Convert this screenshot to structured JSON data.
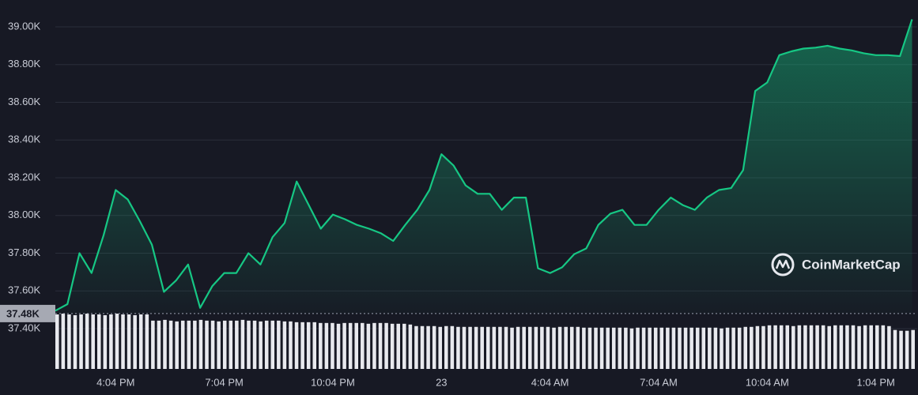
{
  "chart_data": {
    "type": "line",
    "color": "#16c784",
    "grid": true,
    "watermark": "CoinMarketCap",
    "ylim": [
      37400,
      39000
    ],
    "yticks": [
      {
        "value": 37400,
        "label": "37.40K"
      },
      {
        "value": 37600,
        "label": "37.60K"
      },
      {
        "value": 37800,
        "label": "37.80K"
      },
      {
        "value": 38000,
        "label": "38.00K"
      },
      {
        "value": 38200,
        "label": "38.20K"
      },
      {
        "value": 38400,
        "label": "38.40K"
      },
      {
        "value": 38600,
        "label": "38.60K"
      },
      {
        "value": 38800,
        "label": "38.80K"
      },
      {
        "value": 39000,
        "label": "39.00K"
      }
    ],
    "current_price": {
      "value": 37480,
      "label": "37.48K"
    },
    "categories": [
      null,
      null,
      null,
      null,
      null,
      "4:04 PM",
      null,
      null,
      null,
      null,
      null,
      null,
      null,
      null,
      "7:04 PM",
      null,
      null,
      null,
      null,
      null,
      null,
      null,
      null,
      "10:04 PM",
      null,
      null,
      null,
      null,
      null,
      null,
      null,
      null,
      "23",
      null,
      null,
      null,
      null,
      null,
      null,
      null,
      null,
      "4:04 AM",
      null,
      null,
      null,
      null,
      null,
      null,
      null,
      null,
      "7:04 AM",
      null,
      null,
      null,
      null,
      null,
      null,
      null,
      null,
      "10:04 AM",
      null,
      null,
      null,
      null,
      null,
      null,
      null,
      null,
      "1:04 PM",
      null,
      null,
      null
    ],
    "values": [
      37495,
      37530,
      37800,
      37695,
      37895,
      38135,
      38085,
      37970,
      37845,
      37595,
      37655,
      37740,
      37510,
      37625,
      37695,
      37695,
      37800,
      37740,
      37885,
      37960,
      38180,
      38055,
      37930,
      38005,
      37980,
      37950,
      37930,
      37905,
      37865,
      37950,
      38030,
      38135,
      38325,
      38265,
      38160,
      38115,
      38115,
      38030,
      38095,
      38095,
      37720,
      37695,
      37725,
      37795,
      37825,
      37950,
      38010,
      38030,
      37950,
      37950,
      38030,
      38095,
      38055,
      38030,
      38095,
      38135,
      38145,
      38240,
      38660,
      38705,
      38850,
      38870,
      38885,
      38890,
      38900,
      38885,
      38875,
      38860,
      38850,
      38850,
      38845,
      39040
    ],
    "volume": [
      70,
      71,
      70,
      69,
      70,
      71,
      70,
      70,
      69,
      70,
      71,
      70,
      70,
      69,
      70,
      70,
      62,
      62,
      63,
      62,
      61,
      62,
      62,
      62,
      63,
      62,
      62,
      61,
      62,
      62,
      62,
      63,
      62,
      62,
      61,
      62,
      62,
      62,
      61,
      61,
      60,
      60,
      60,
      60,
      59,
      59,
      59,
      58,
      59,
      59,
      59,
      59,
      58,
      59,
      59,
      59,
      58,
      58,
      58,
      57,
      55,
      55,
      55,
      55,
      54,
      55,
      55,
      54,
      54,
      54,
      54,
      54,
      54,
      54,
      54,
      54,
      53,
      54,
      54,
      54,
      54,
      54,
      54,
      53,
      54,
      54,
      54,
      54,
      53,
      53,
      53,
      53,
      53,
      53,
      53,
      53,
      52,
      53,
      53,
      53,
      53,
      53,
      53,
      53,
      53,
      53,
      53,
      53,
      53,
      53,
      53,
      52,
      53,
      53,
      53,
      54,
      54,
      55,
      55,
      56,
      56,
      56,
      56,
      55,
      56,
      56,
      56,
      56,
      56,
      55,
      56,
      56,
      56,
      56,
      55,
      56,
      56,
      56,
      56,
      55,
      50,
      49,
      49,
      50
    ]
  }
}
